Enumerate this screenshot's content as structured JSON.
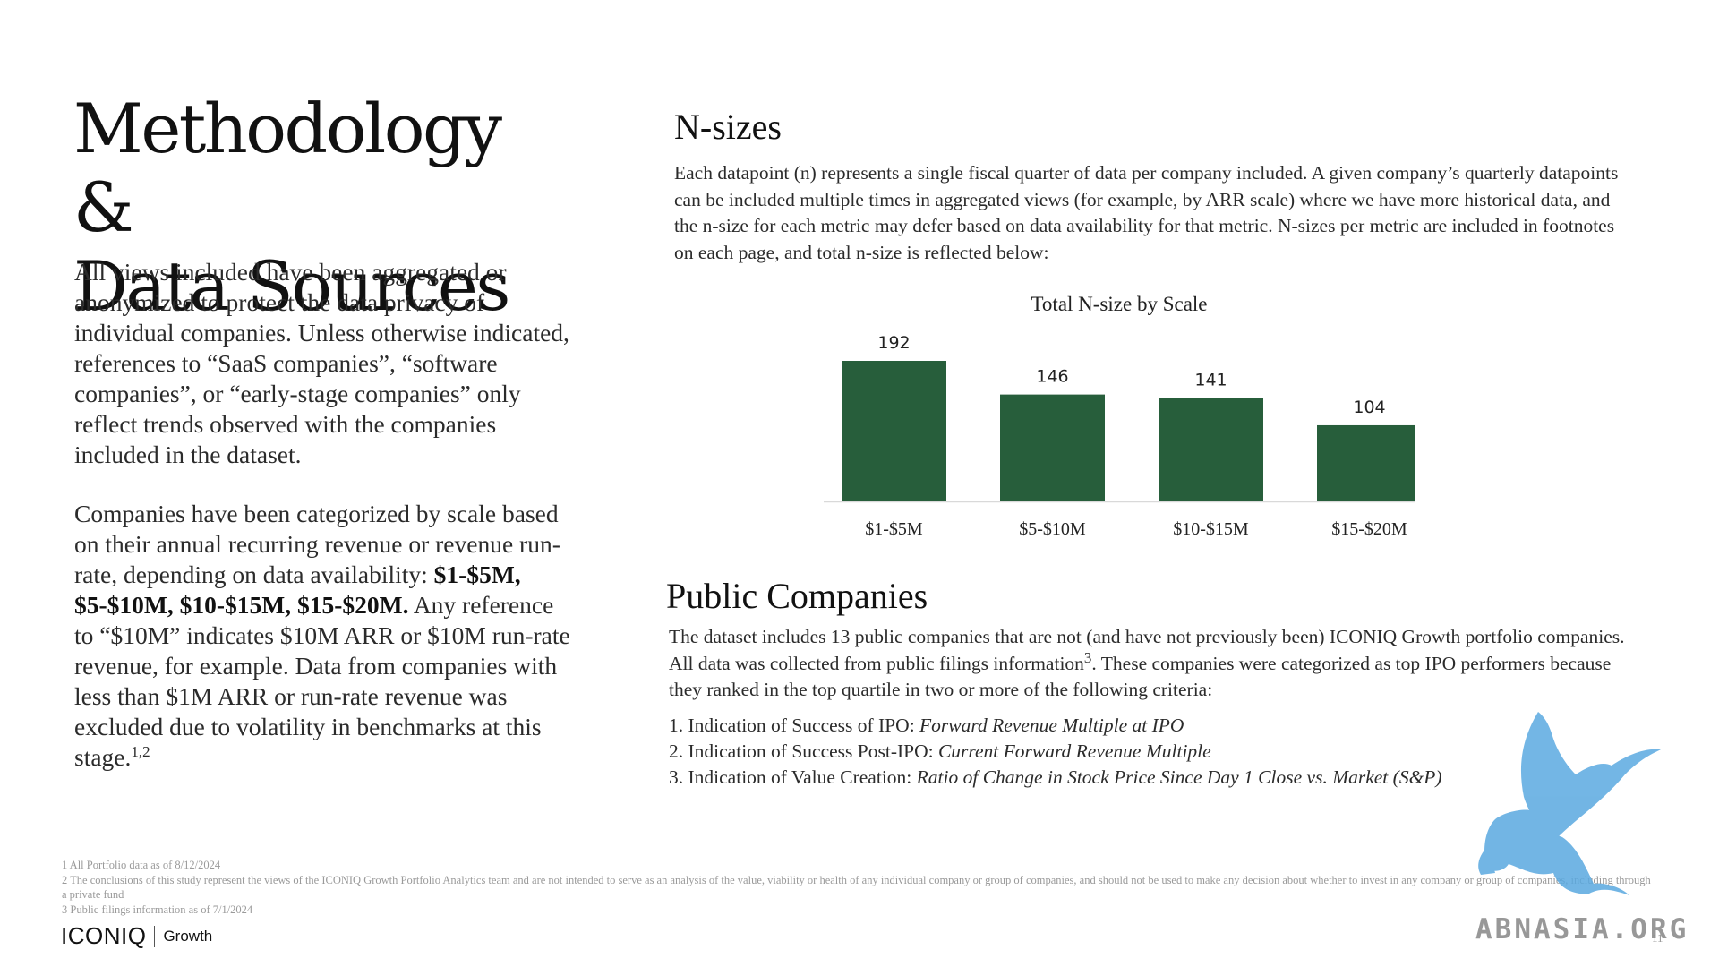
{
  "left": {
    "title_line1": "Methodology &",
    "title_line2": "Data Sources",
    "para1": "All views included have been aggregated or anonymized to protect the data privacy of individual companies. Unless otherwise indicated, references to “SaaS companies”, “software companies”, or “early-stage companies” only reflect trends observed with the companies included in the dataset.",
    "para2_start": "Companies have been categorized by scale based on their annual recurring revenue or revenue run-rate, depending on data availability: ",
    "para2_bold": "$1-$5M, $5-$10M, $10-$15M, $15-$20M.",
    "para2_end": " Any reference to “$10M” indicates $10M ARR or $10M run-rate revenue, for example. Data from companies with less than $1M ARR or run-rate revenue was excluded due to volatility in benchmarks at this stage.",
    "para2_sup": "1,2"
  },
  "nsizes": {
    "heading": "N-sizes",
    "body": "Each datapoint (n) represents a single fiscal quarter of data per company included. A given company’s quarterly datapoints can be included multiple times in aggregated views (for example, by ARR scale) where we have more historical data, and the n-size for each metric may defer based on data availability for that metric. N-sizes per metric are included in footnotes on each page, and total n-size is reflected below:"
  },
  "chart_data": {
    "type": "bar",
    "title": "Total N-size by Scale",
    "categories": [
      "$1-$5M",
      "$5-$10M",
      "$10-$15M",
      "$15-$20M"
    ],
    "values": [
      192,
      146,
      141,
      104
    ],
    "ylim": [
      0,
      192
    ],
    "grid": false,
    "bar_color": "#275e3b"
  },
  "public": {
    "heading": "Public Companies",
    "body_start": "The dataset includes 13 public companies that are not (and have not previously been) ICONIQ Growth portfolio companies. All data was collected from public filings information",
    "body_sup": "3",
    "body_end": ". These companies were categorized as top IPO performers because they ranked in the top quartile in two or more of the following criteria:",
    "criteria": [
      {
        "label": "1. Indication of Success of IPO: ",
        "detail": "Forward Revenue Multiple at IPO"
      },
      {
        "label": "2. Indication of Success Post-IPO: ",
        "detail": "Current Forward Revenue Multiple"
      },
      {
        "label": "3. Indication of Value Creation: ",
        "detail": "Ratio of Change in Stock Price Since Day 1 Close vs. Market (S&P)"
      }
    ]
  },
  "footnotes": [
    "1 All Portfolio data as of 8/12/2024",
    "2 The conclusions of this study represent the views of the ICONIQ Growth Portfolio Analytics team and are not intended to serve as an analysis of the value, viability or health of any individual company or group of companies, and should not be used to make any decision about whether to invest in any company or group of companies, including through a private fund",
    "3 Public filings information as of 7/1/2024"
  ],
  "footer": {
    "brand": "ICONIQ",
    "brand_sub": "Growth",
    "page_number": "11"
  },
  "watermark": {
    "text": "ABNASIA.ORG",
    "color": "#5aa9e0"
  }
}
